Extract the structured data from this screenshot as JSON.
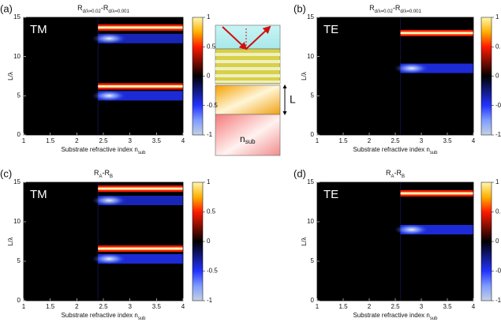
{
  "colormap": [
    {
      "value": -1,
      "color": "#c4d2e4"
    },
    {
      "value": -0.75,
      "color": "#7f9cff"
    },
    {
      "value": -0.5,
      "color": "#2233ff"
    },
    {
      "value": 0,
      "color": "#000000"
    },
    {
      "value": 0.5,
      "color": "#ff1a00"
    },
    {
      "value": 0.75,
      "color": "#ffb000"
    },
    {
      "value": 1,
      "color": "#fff7b0"
    }
  ],
  "schematic": {
    "thickness_label": "L",
    "substrate_label": "n",
    "substrate_sub": "sub"
  },
  "chart_data": [
    {
      "type": "heatmap",
      "panel_label": "(a)",
      "mode": "TM",
      "title": [
        {
          "text": "R",
          "sub": "d/λ=0.02"
        },
        {
          "text": "-R",
          "sub": "d/λ=0.001"
        }
      ],
      "xlabel": {
        "text": "Substrate refractive index n",
        "sub": "sub"
      },
      "ylabel": "L/λ",
      "xlim": [
        1,
        4
      ],
      "ylim": [
        0,
        15
      ],
      "xticks": [
        1,
        1.5,
        2,
        2.5,
        3,
        3.5,
        4
      ],
      "yticks": [
        0,
        5,
        10,
        15
      ],
      "clim": [
        -1,
        1
      ],
      "cticks": [
        -1,
        -0.5,
        0,
        0.5,
        1
      ],
      "onset": 2.4,
      "bands": [
        {
          "y": 13.7,
          "value": 1
        },
        {
          "y": 12.3,
          "value": -0.6
        },
        {
          "y": 6.2,
          "value": 1
        },
        {
          "y": 5.0,
          "value": -0.7
        }
      ]
    },
    {
      "type": "heatmap",
      "panel_label": "(b)",
      "mode": "TE",
      "title": [
        {
          "text": "R",
          "sub": "d/λ=0.02"
        },
        {
          "text": "-R",
          "sub": "d/λ=0.001"
        }
      ],
      "xlabel": {
        "text": "Substrate refractive index n",
        "sub": "sub"
      },
      "ylabel": "L/λ",
      "xlim": [
        1,
        4
      ],
      "ylim": [
        0,
        15
      ],
      "xticks": [
        1,
        1.5,
        2,
        2.5,
        3,
        3.5,
        4
      ],
      "yticks": [
        0,
        5,
        10,
        15
      ],
      "clim": [
        -1,
        1
      ],
      "cticks": [
        -1,
        -0.5,
        0,
        0.5,
        1
      ],
      "onset": 2.6,
      "bands": [
        {
          "y": 13.0,
          "value": 1
        },
        {
          "y": 8.5,
          "value": -0.7
        }
      ]
    },
    {
      "type": "heatmap",
      "panel_label": "(c)",
      "mode": "TM",
      "title": [
        {
          "text": "R",
          "sub": "A"
        },
        {
          "text": "-R",
          "sub": "B"
        }
      ],
      "xlabel": {
        "text": "Substrate refractive index n",
        "sub": "sub"
      },
      "ylabel": "L/λ",
      "xlim": [
        1,
        4
      ],
      "ylim": [
        0,
        15
      ],
      "xticks": [
        1,
        1.5,
        2,
        2.5,
        3,
        3.5,
        4
      ],
      "yticks": [
        0,
        5,
        10,
        15
      ],
      "clim": [
        -1,
        1
      ],
      "cticks": [
        -1,
        -0.5,
        0,
        0.5,
        1
      ],
      "onset": 2.4,
      "bands": [
        {
          "y": 14.2,
          "value": 1
        },
        {
          "y": 12.7,
          "value": -0.6
        },
        {
          "y": 6.6,
          "value": 1
        },
        {
          "y": 5.3,
          "value": -0.7
        }
      ]
    },
    {
      "type": "heatmap",
      "panel_label": "(d)",
      "mode": "TE",
      "title": [
        {
          "text": "R",
          "sub": "A"
        },
        {
          "text": "-R",
          "sub": "B"
        }
      ],
      "xlabel": {
        "text": "Substrate refractive index n",
        "sub": "sub"
      },
      "ylabel": "L/λ",
      "xlim": [
        1,
        4
      ],
      "ylim": [
        0,
        15
      ],
      "xticks": [
        1,
        1.5,
        2,
        2.5,
        3,
        3.5,
        4
      ],
      "yticks": [
        0,
        5,
        10,
        15
      ],
      "clim": [
        -1,
        1
      ],
      "cticks": [
        -1,
        -0.5,
        0,
        0.5,
        1
      ],
      "onset": 2.6,
      "bands": [
        {
          "y": 13.6,
          "value": 1
        },
        {
          "y": 9.0,
          "value": -0.7
        }
      ]
    }
  ]
}
